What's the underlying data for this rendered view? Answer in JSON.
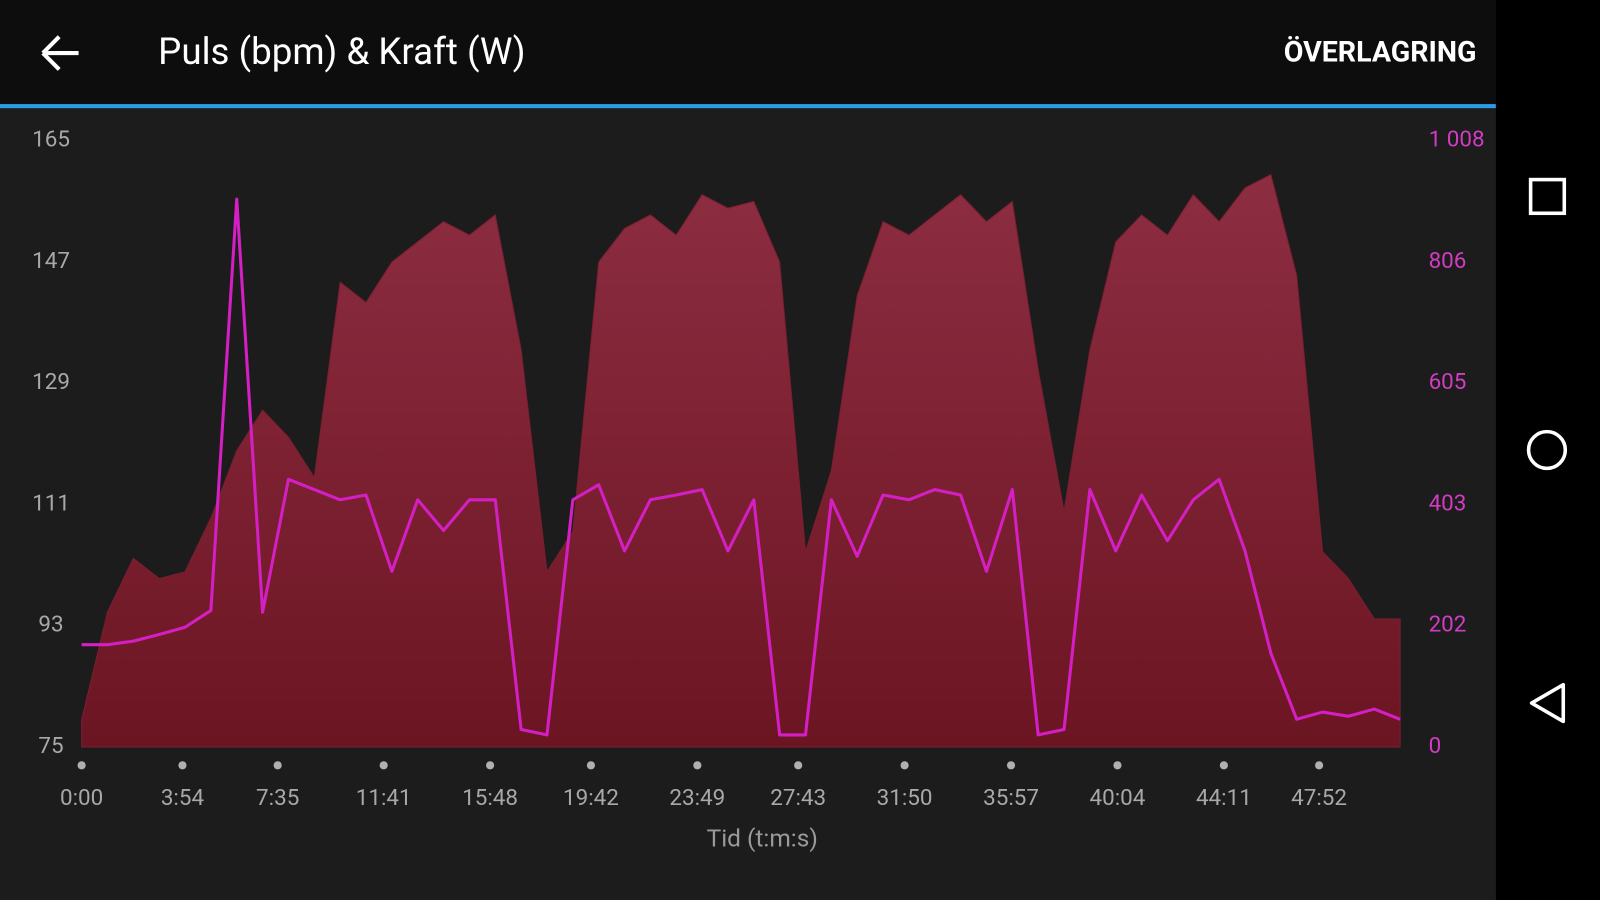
{
  "header": {
    "title": "Puls (bpm) & Kraft (W)",
    "action": "ÖVERLAGRING"
  },
  "chart_data": {
    "type": "area-line",
    "xlabel": "Tid (t:m:s)",
    "x": [
      0,
      60,
      120,
      180,
      240,
      300,
      360,
      420,
      480,
      540,
      600,
      660,
      720,
      780,
      840,
      900,
      960,
      1020,
      1080,
      1140,
      1200,
      1260,
      1320,
      1380,
      1440,
      1500,
      1560,
      1620,
      1680,
      1740,
      1800,
      1860,
      1920,
      1980,
      2040,
      2100,
      2160,
      2220,
      2280,
      2340,
      2400,
      2460,
      2520,
      2580,
      2640,
      2700,
      2760,
      2820,
      2880,
      2940,
      3000,
      3060
    ],
    "xlim": [
      0,
      3100
    ],
    "xticks": [
      {
        "value": 0,
        "label": "0:00"
      },
      {
        "value": 234,
        "label": "3:54"
      },
      {
        "value": 455,
        "label": "7:35"
      },
      {
        "value": 701,
        "label": "11:41"
      },
      {
        "value": 948,
        "label": "15:48"
      },
      {
        "value": 1182,
        "label": "19:42"
      },
      {
        "value": 1429,
        "label": "23:49"
      },
      {
        "value": 1663,
        "label": "27:43"
      },
      {
        "value": 1910,
        "label": "31:50"
      },
      {
        "value": 2157,
        "label": "35:57"
      },
      {
        "value": 2404,
        "label": "40:04"
      },
      {
        "value": 2651,
        "label": "44:11"
      },
      {
        "value": 2872,
        "label": "47:52"
      }
    ],
    "ylim": [
      75,
      165
    ],
    "yticks": [
      75,
      93,
      111,
      129,
      147,
      165
    ],
    "y2lim": [
      0,
      1008
    ],
    "y2ticks": [
      0,
      202,
      403,
      605,
      806,
      {
        "value": 1008,
        "label": "1 008"
      }
    ],
    "series": [
      {
        "color": "#7a1f30",
        "axis": "y",
        "values": [
          79,
          95,
          103,
          100,
          101,
          109,
          119,
          125,
          121,
          115,
          144,
          141,
          147,
          150,
          153,
          151,
          154,
          134,
          101,
          107,
          147,
          152,
          154,
          151,
          157,
          155,
          156,
          147,
          104,
          116,
          142,
          153,
          151,
          154,
          157,
          153,
          156,
          131,
          110,
          134,
          150,
          154,
          151,
          157,
          153,
          158,
          160,
          145,
          104,
          100,
          94,
          94
        ]
      },
      {
        "color": "#d41fc4",
        "axis": "y2",
        "values": [
          170,
          170,
          176,
          187,
          199,
          227,
          911,
          224,
          445,
          428,
          411,
          419,
          292,
          411,
          360,
          411,
          411,
          29,
          20,
          411,
          436,
          326,
          411,
          419,
          428,
          326,
          411,
          20,
          20,
          411,
          317,
          419,
          411,
          428,
          419,
          292,
          428,
          20,
          29,
          428,
          326,
          419,
          343,
          411,
          445,
          326,
          156,
          46,
          58,
          51,
          63,
          46
        ]
      }
    ]
  }
}
